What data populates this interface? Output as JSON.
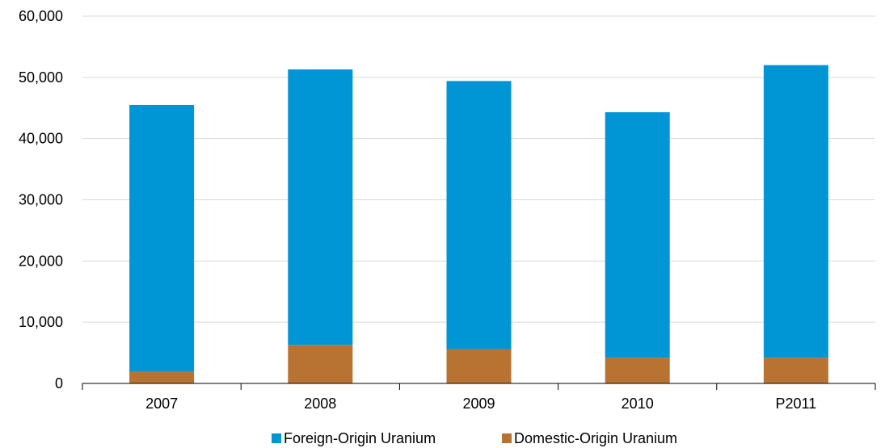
{
  "chart_data": {
    "type": "bar",
    "stacked": true,
    "categories": [
      "2007",
      "2008",
      "2009",
      "2010",
      "P2011"
    ],
    "series": [
      {
        "name": "Domestic-Origin Uranium",
        "color": "#b87333",
        "values": [
          1900,
          6300,
          5600,
          4200,
          4200
        ]
      },
      {
        "name": "Foreign-Origin Uranium",
        "color": "#0096d6",
        "values": [
          43600,
          45000,
          43800,
          40100,
          47800
        ]
      }
    ],
    "ylim": [
      0,
      60000
    ],
    "yticks": [
      0,
      10000,
      20000,
      30000,
      40000,
      50000,
      60000
    ],
    "ytick_labels": [
      "0",
      "10,000",
      "20,000",
      "30,000",
      "40,000",
      "50,000",
      "60,000"
    ],
    "grid": true,
    "legend": {
      "position": "bottom",
      "entries": [
        "Foreign-Origin Uranium",
        "Domestic-Origin Uranium"
      ]
    },
    "title": "",
    "xlabel": "",
    "ylabel": ""
  }
}
